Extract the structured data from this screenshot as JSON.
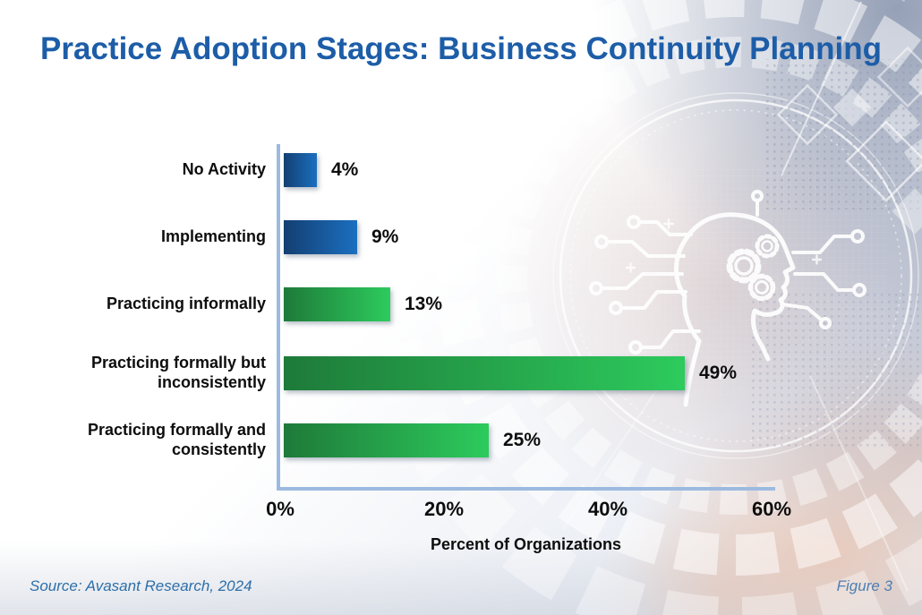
{
  "title": "Practice Adoption Stages: Business Continuity Planning",
  "source_note": "Source: Avasant Research, 2024",
  "figure_label": "Figure 3",
  "colors": {
    "title_text": "#1d5da8",
    "axis_line": "#9cbae0",
    "label_text": "#0d0d0d",
    "source_text": "#2d6fa9",
    "figure_text": "#4d7fb3",
    "bar_blue_start": "#133f72",
    "bar_blue_end": "#1b6fc0",
    "bar_green_start": "#1e7a39",
    "bar_green_end": "#2dcb5d"
  },
  "chart_data": {
    "type": "bar",
    "orientation": "horizontal",
    "title": "Practice Adoption Stages: Business Continuity Planning",
    "categories": [
      "No Activity",
      "Implementing",
      "Practicing informally",
      "Practicing formally but inconsistently",
      "Practicing formally and consistently"
    ],
    "values": [
      4,
      9,
      13,
      49,
      25
    ],
    "value_labels": [
      "4%",
      "9%",
      "13%",
      "49%",
      "25%"
    ],
    "bar_palette": [
      "blue",
      "blue",
      "green",
      "green",
      "green"
    ],
    "xlabel": "Percent of Organizations",
    "x_ticks": [
      {
        "label": "0%",
        "value": 0
      },
      {
        "label": "20%",
        "value": 20
      },
      {
        "label": "40%",
        "value": 40
      },
      {
        "label": "60%",
        "value": 60
      }
    ],
    "xlim": [
      0,
      60
    ],
    "grid": false,
    "legend": false
  }
}
